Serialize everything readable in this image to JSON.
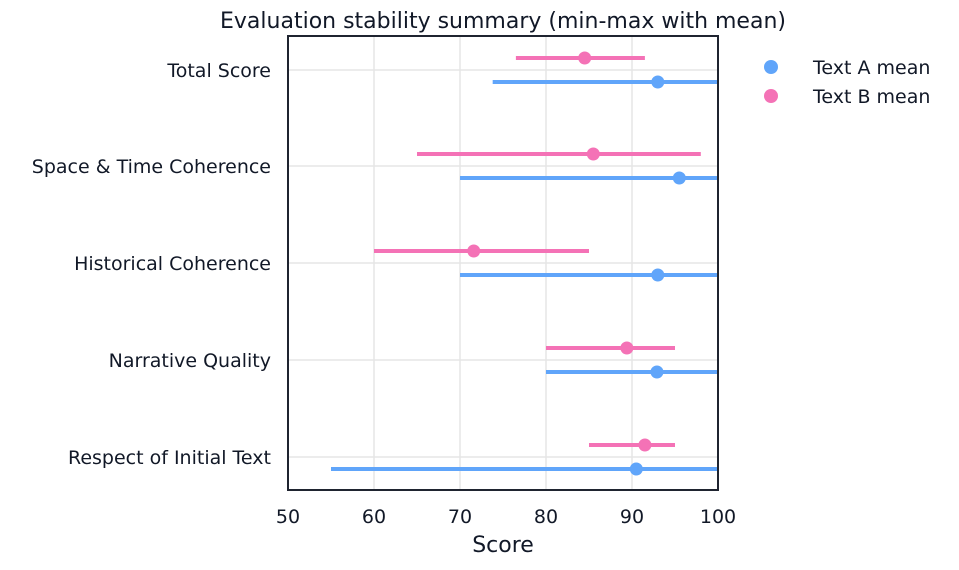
{
  "chart_data": {
    "type": "errorbar-dot",
    "title": "Evaluation stability summary (min-max with mean)",
    "xlabel": "Score",
    "ylabel": "",
    "xlim": [
      50,
      100
    ],
    "xticks": [
      "50",
      "60",
      "70",
      "80",
      "90",
      "100"
    ],
    "grid": true,
    "legend_position": "outside-right",
    "categories": [
      "Total Score",
      "Space & Time Coherence",
      "Historical Coherence",
      "Narrative Quality",
      "Respect of Initial Text"
    ],
    "series": [
      {
        "name": "Text A mean",
        "color": "#60a5fa",
        "mean": [
          93.0,
          95.5,
          93.0,
          92.9,
          90.5
        ],
        "min": [
          73.8,
          70.0,
          70.0,
          80.0,
          55.0
        ],
        "max": [
          100,
          100,
          100,
          100,
          100
        ]
      },
      {
        "name": "Text B mean",
        "color": "#f472b6",
        "mean": [
          84.5,
          85.5,
          71.6,
          89.4,
          91.5
        ],
        "min": [
          76.5,
          65.0,
          60.0,
          80.0,
          85.0
        ],
        "max": [
          91.5,
          98.0,
          85.0,
          95.0,
          95.0
        ]
      }
    ]
  }
}
